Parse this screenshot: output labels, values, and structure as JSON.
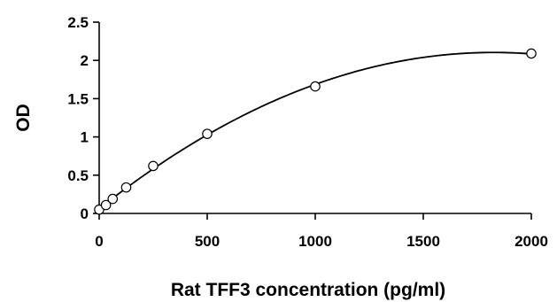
{
  "chart_data": {
    "type": "scatter",
    "xlabel": "Rat TFF3 concentration (pg/ml)",
    "ylabel": "OD",
    "xlim": [
      0,
      2000
    ],
    "ylim": [
      0,
      2.5
    ],
    "x_ticks": [
      "0",
      "500",
      "1000",
      "1500",
      "2000"
    ],
    "y_ticks": [
      "0",
      "0.5",
      "1",
      "1.5",
      "2",
      "2.5"
    ],
    "grid": false,
    "legend": "none",
    "series": [
      {
        "points": [
          {
            "x": 0,
            "y": 0.05
          },
          {
            "x": 31.25,
            "y": 0.11
          },
          {
            "x": 62.5,
            "y": 0.19
          },
          {
            "x": 125,
            "y": 0.34
          },
          {
            "x": 250,
            "y": 0.62
          },
          {
            "x": 500,
            "y": 1.04
          },
          {
            "x": 1000,
            "y": 1.66
          },
          {
            "x": 2000,
            "y": 2.09
          }
        ],
        "trendline": "polynomial fit through points"
      }
    ]
  }
}
